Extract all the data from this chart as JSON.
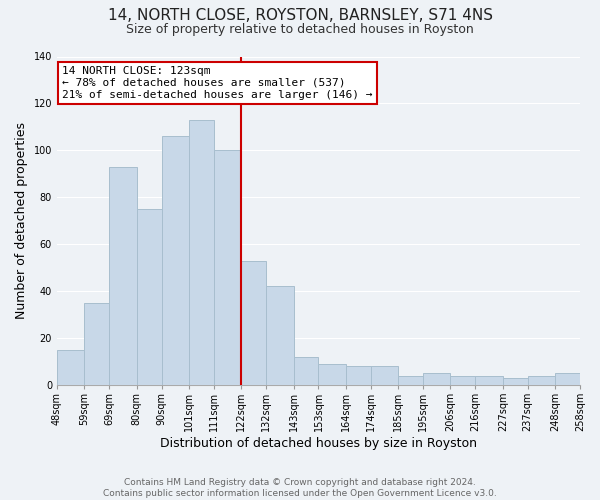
{
  "title": "14, NORTH CLOSE, ROYSTON, BARNSLEY, S71 4NS",
  "subtitle": "Size of property relative to detached houses in Royston",
  "xlabel": "Distribution of detached houses by size in Royston",
  "ylabel": "Number of detached properties",
  "bar_edges": [
    48,
    59,
    69,
    80,
    90,
    101,
    111,
    122,
    132,
    143,
    153,
    164,
    174,
    185,
    195,
    206,
    216,
    227,
    237,
    248,
    258
  ],
  "bar_heights": [
    15,
    35,
    93,
    75,
    106,
    113,
    100,
    53,
    42,
    12,
    9,
    8,
    8,
    4,
    5,
    4,
    4,
    3,
    4,
    5
  ],
  "bar_color": "#c8d8e8",
  "bar_edge_color": "#a8bece",
  "vline_x": 122,
  "vline_color": "#cc0000",
  "annotation_title": "14 NORTH CLOSE: 123sqm",
  "annotation_line1": "← 78% of detached houses are smaller (537)",
  "annotation_line2": "21% of semi-detached houses are larger (146) →",
  "annotation_box_facecolor": "#ffffff",
  "annotation_box_edgecolor": "#cc0000",
  "xlim": [
    48,
    258
  ],
  "ylim": [
    0,
    140
  ],
  "yticks": [
    0,
    20,
    40,
    60,
    80,
    100,
    120,
    140
  ],
  "xtick_labels": [
    "48sqm",
    "59sqm",
    "69sqm",
    "80sqm",
    "90sqm",
    "101sqm",
    "111sqm",
    "122sqm",
    "132sqm",
    "143sqm",
    "153sqm",
    "164sqm",
    "174sqm",
    "185sqm",
    "195sqm",
    "206sqm",
    "216sqm",
    "227sqm",
    "237sqm",
    "248sqm",
    "258sqm"
  ],
  "xtick_positions": [
    48,
    59,
    69,
    80,
    90,
    101,
    111,
    122,
    132,
    143,
    153,
    164,
    174,
    185,
    195,
    206,
    216,
    227,
    237,
    248,
    258
  ],
  "footer_line1": "Contains HM Land Registry data © Crown copyright and database right 2024.",
  "footer_line2": "Contains public sector information licensed under the Open Government Licence v3.0.",
  "background_color": "#eef2f6",
  "grid_color": "#ffffff",
  "title_fontsize": 11,
  "subtitle_fontsize": 9,
  "axis_label_fontsize": 9,
  "tick_fontsize": 7,
  "footer_fontsize": 6.5
}
